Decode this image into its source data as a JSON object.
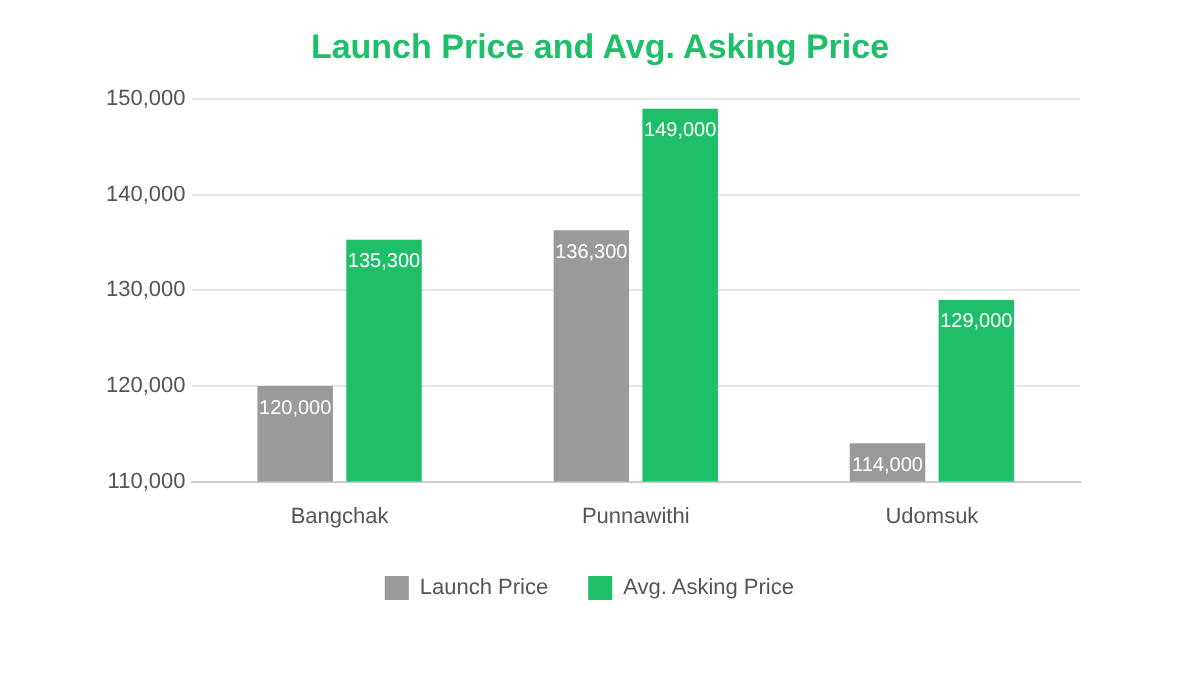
{
  "chart_data": {
    "type": "bar",
    "title": "Launch Price and Avg. Asking Price",
    "categories": [
      "Bangchak",
      "Punnawithi",
      "Udomsuk"
    ],
    "series": [
      {
        "name": "Launch Price",
        "color": "#9a9a9a",
        "values": [
          120000,
          136300,
          114000
        ],
        "value_labels": [
          "120,000",
          "136,300",
          "114,000"
        ]
      },
      {
        "name": "Avg. Asking Price",
        "color": "#1fbf6a",
        "values": [
          135300,
          149000,
          129000
        ],
        "value_labels": [
          "135,300",
          "149,000",
          "129,000"
        ]
      }
    ],
    "ylim": [
      110000,
      150000
    ],
    "yticks": [
      {
        "value": 110000,
        "label": "110,000"
      },
      {
        "value": 120000,
        "label": "120,000"
      },
      {
        "value": 130000,
        "label": "130,000"
      },
      {
        "value": 140000,
        "label": "140,000"
      },
      {
        "value": 150000,
        "label": "150,000"
      }
    ],
    "grid": "y",
    "legend": "bottom"
  }
}
